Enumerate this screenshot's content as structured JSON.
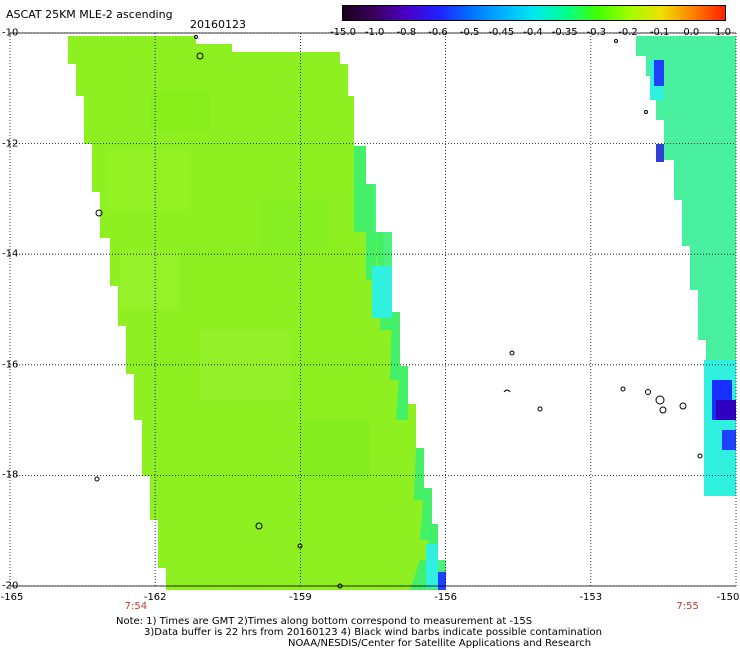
{
  "header": {
    "title": "ASCAT 25KM MLE-2 ascending",
    "date": "20160123"
  },
  "colorbar": {
    "labels": [
      "-15.0",
      "-1.0",
      "-0.8",
      "-0.6",
      "-0.5",
      "-0.45",
      "-0.4",
      "-0.35",
      "-0.3",
      "-0.2",
      "-0.1",
      "0.0",
      "1.0"
    ],
    "colors": [
      "#1a001a",
      "#3a0060",
      "#4b00c8",
      "#2020ff",
      "#0070ff",
      "#00b0ff",
      "#00e8f0",
      "#00ff90",
      "#40ff00",
      "#a0ff00",
      "#f0e000",
      "#ff8000",
      "#ff2000"
    ]
  },
  "axes": {
    "lat_labels": [
      "-10",
      "-12",
      "-14",
      "-16",
      "-18",
      "-20"
    ],
    "lat_values": [
      -10,
      -12,
      -14,
      -16,
      -18,
      -20
    ],
    "lon_labels": [
      "-165",
      "-162",
      "-159",
      "-156",
      "-153",
      "-150"
    ],
    "lon_values": [
      -165,
      -162,
      -159,
      -156,
      -153,
      -150
    ],
    "time_labels": [
      {
        "text": "7:54",
        "lon": -162.4
      },
      {
        "text": "7:55",
        "lon": -151.0
      }
    ]
  },
  "notes": {
    "line1": "Note: 1) Times are GMT 2)Times along bottom correspond to measurement at -15S",
    "line2": "3)Data buffer is 22 hrs from 20160123 4) Black wind barbs indicate possible contamination",
    "line3": "NOAA/NESDIS/Center for Satellite Applications and Research"
  },
  "swaths": {
    "main_color": "#8ef020",
    "edge_color": "#3cf070",
    "cyan_color": "#30f0e0",
    "blue_color": "#2040ff",
    "right_color": "#48f0a0"
  }
}
